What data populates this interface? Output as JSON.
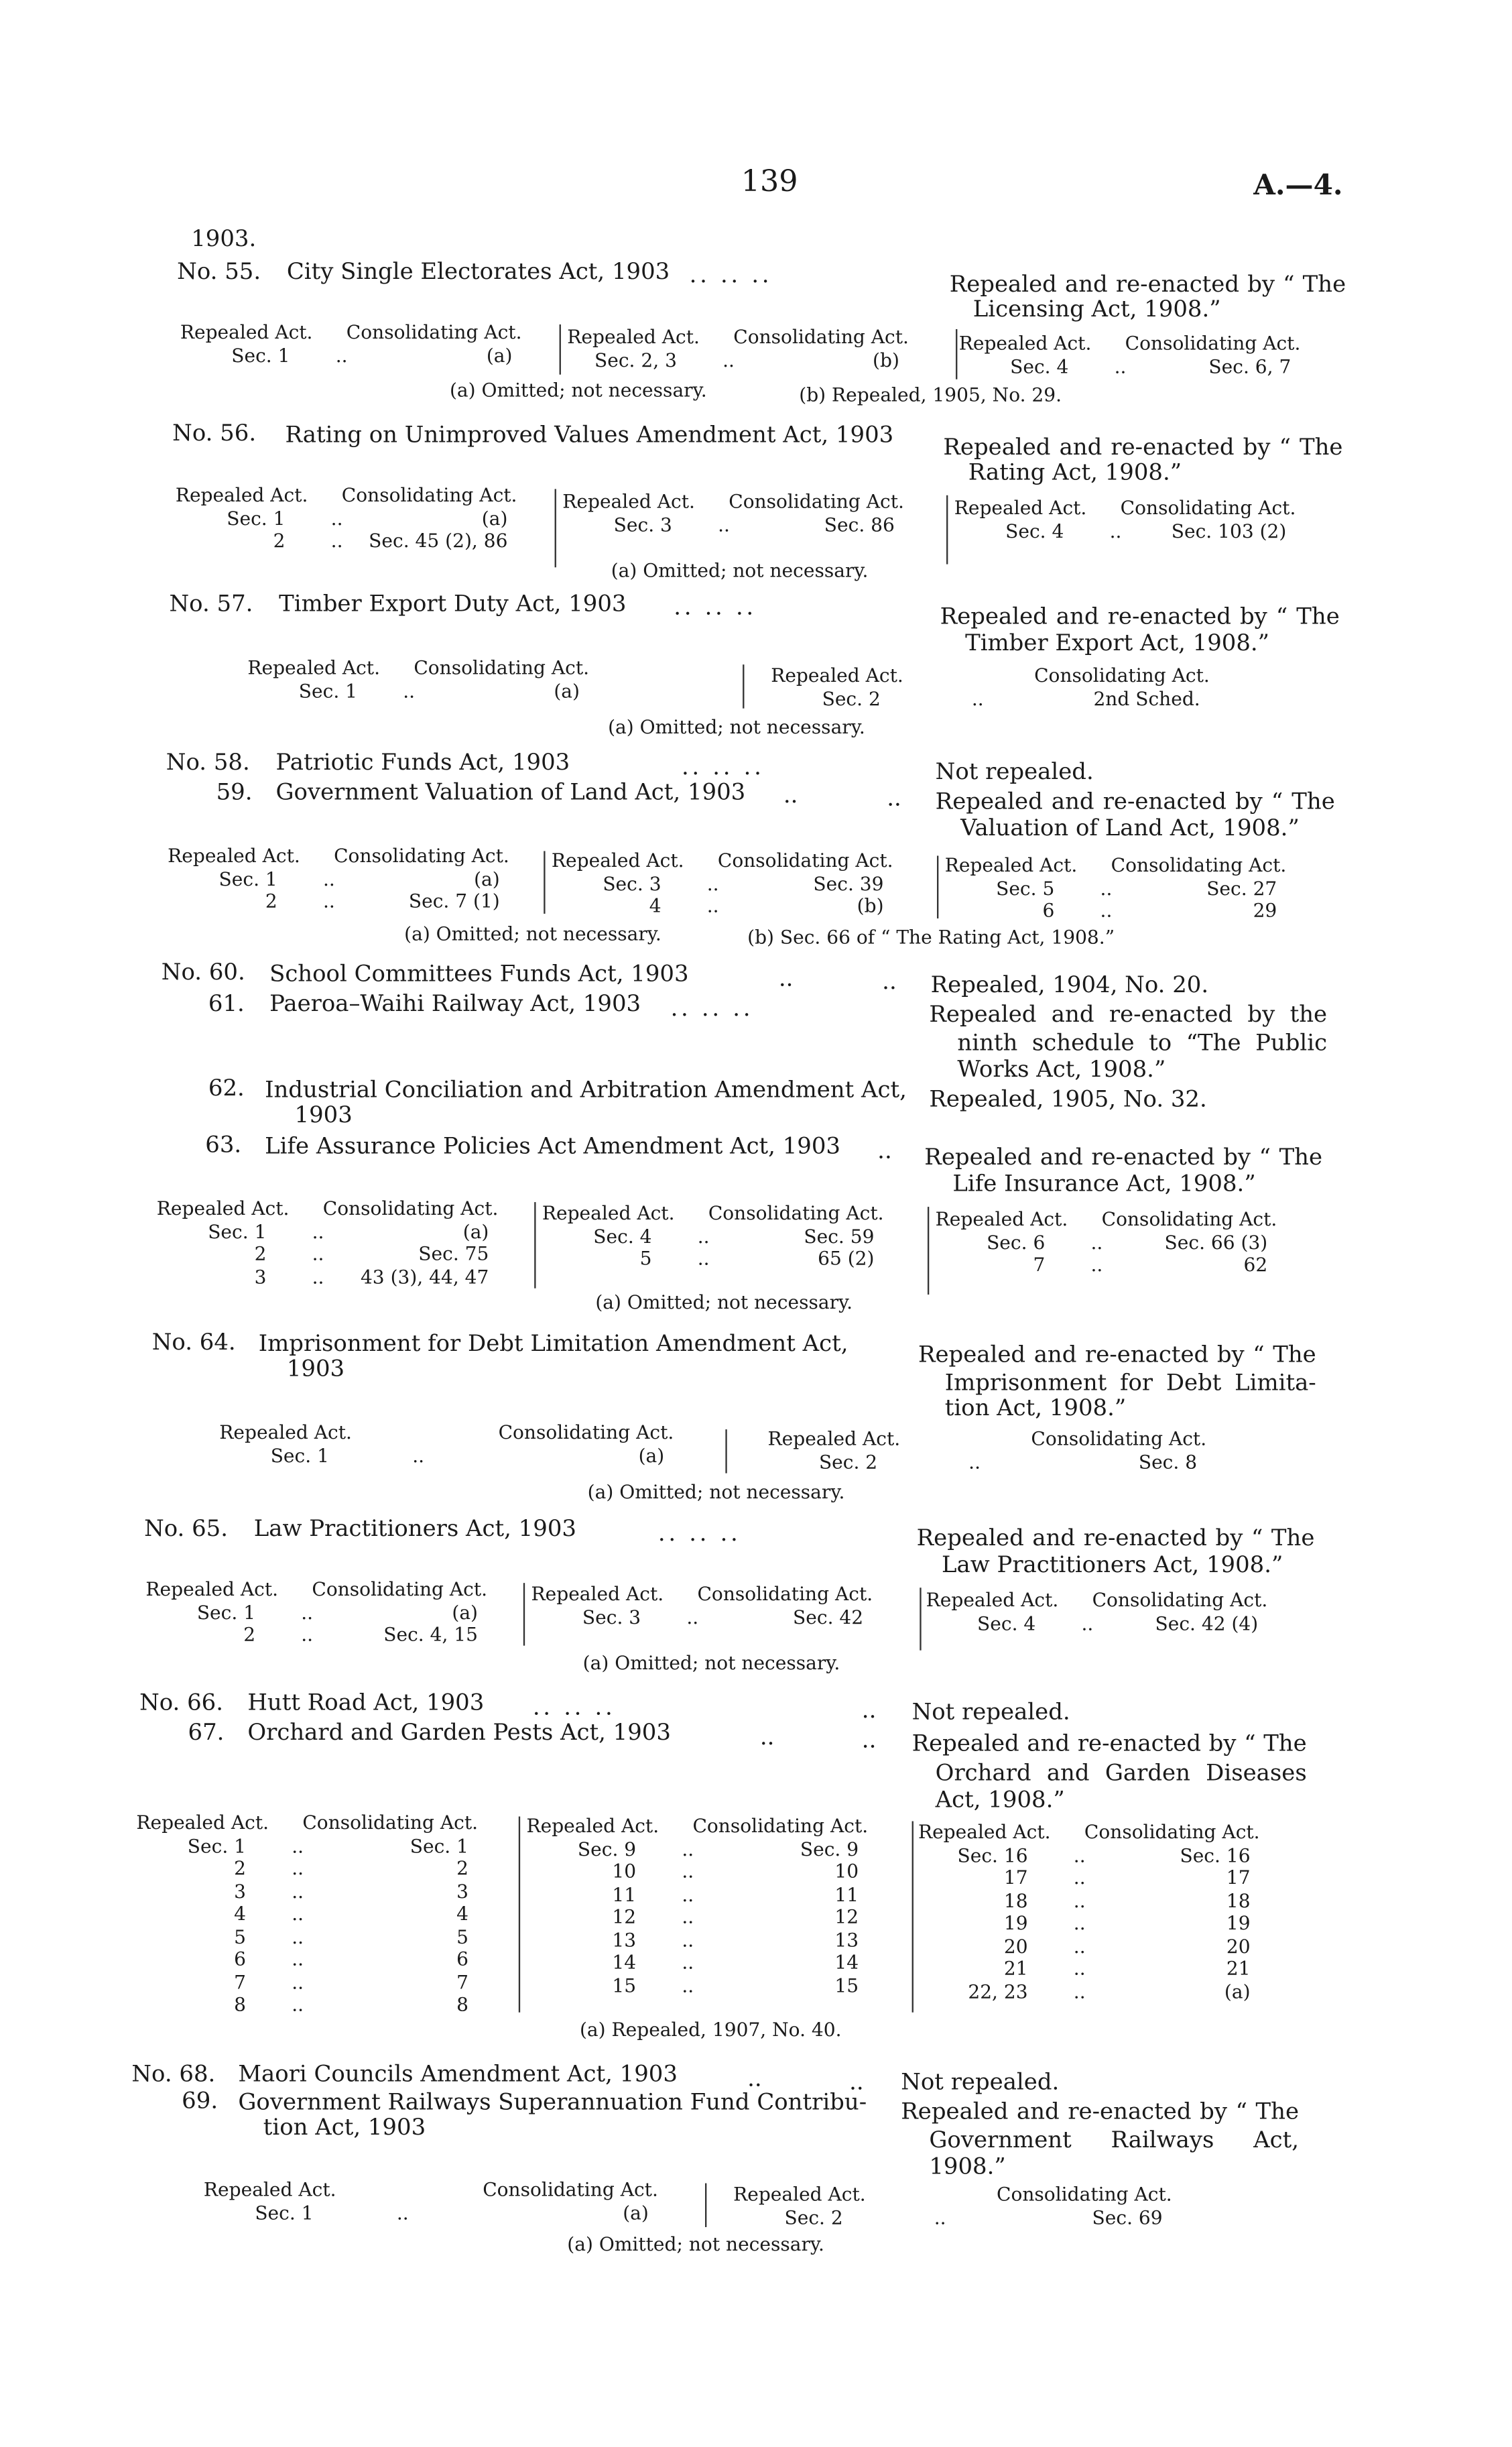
{
  "header": {
    "page_number": "139",
    "reference": "A.—4."
  },
  "year": "1903.",
  "leader": "..",
  "dots_leader": "..        ..        ..",
  "table_headers": {
    "repealed": "Repealed Act.",
    "consolidating": "Consolidating Act."
  },
  "entries": [
    {
      "number": "No. 55.",
      "title": "City Single Electorates Act, 1903",
      "status": [
        "Repealed and re-enacted by “ The",
        "Licensing Act, 1908.”"
      ]
    },
    {
      "number": "No. 56.",
      "title": "Rating on Unimproved Values Amendment Act, 1903",
      "status": [
        "Repealed and re-enacted by “ The",
        "Rating Act, 1908.”"
      ]
    },
    {
      "number": "No. 57.",
      "title": "Timber Export Duty Act, 1903",
      "status": [
        "Repealed and re-enacted by “ The",
        "Timber Export Act, 1908.”"
      ]
    },
    {
      "number": "No. 58.",
      "title": "Patriotic Funds Act, 1903",
      "status": [
        "Not repealed."
      ]
    },
    {
      "number": "59.",
      "title": "Government Valuation of Land Act, 1903",
      "status": [
        "Repealed and re-enacted by “ The",
        "Valuation of Land Act, 1908.”"
      ]
    },
    {
      "number": "No. 60.",
      "title": "School Committees Funds Act, 1903",
      "status": [
        "Repealed, 1904, No. 20."
      ]
    },
    {
      "number": "61.",
      "title": "Paeroa–Waihi Railway Act, 1903",
      "status": [
        "Repealed and re-enacted by the",
        "ninth schedule to “The Public",
        "Works Act, 1908.”"
      ]
    },
    {
      "number": "62.",
      "title": [
        "Industrial Conciliation and Arbitration Amendment Act,",
        "1903"
      ],
      "status": [
        "Repealed, 1905, No. 32."
      ]
    },
    {
      "number": "63.",
      "title": "Life Assurance Policies Act Amendment Act, 1903",
      "status": [
        "Repealed and re-enacted by “ The",
        "Life Insurance Act, 1908.”"
      ]
    },
    {
      "number": "No. 64.",
      "title": [
        "Imprisonment for Debt Limitation Amendment Act,",
        "1903"
      ],
      "status": [
        "Repealed and re-enacted by “ The",
        "Imprisonment for Debt Limita-",
        "tion Act, 1908.”"
      ]
    },
    {
      "number": "No. 65.",
      "title": "Law Practitioners Act, 1903",
      "status": [
        "Repealed and re-enacted by “ The",
        "Law Practitioners Act, 1908.”"
      ]
    },
    {
      "number": "No. 66.",
      "title": "Hutt Road Act, 1903",
      "status": [
        "Not repealed."
      ]
    },
    {
      "number": "67.",
      "title": "Orchard and Garden Pests Act, 1903",
      "status": [
        "Repealed and re-enacted by “ The",
        "Orchard and Garden Diseases",
        "Act, 1908.”"
      ]
    },
    {
      "number": "No. 68.",
      "title": "Maori Councils Amendment Act, 1903",
      "status": [
        "Not repealed."
      ]
    },
    {
      "number": "69.",
      "title": [
        "Government Railways Superannuation Fund Contribu-",
        "tion Act, 1903"
      ],
      "status": [
        "Repealed and re-enacted by “ The",
        "Government Railways Act,",
        "1908.”"
      ]
    }
  ],
  "tables": [
    {
      "groups": [
        [
          [
            "Sec. 1",
            "(a)"
          ]
        ],
        [
          [
            "Sec. 2, 3",
            "(b)"
          ]
        ],
        [
          [
            "Sec. 4",
            "Sec. 6, 7"
          ]
        ]
      ],
      "footnotes": [
        "(a) Omitted; not necessary.",
        "(b) Repealed, 1905, No. 29."
      ]
    },
    {
      "groups": [
        [
          [
            "Sec. 1",
            "(a)"
          ],
          [
            "2",
            "Sec. 45 (2), 86"
          ]
        ],
        [
          [
            "Sec. 3",
            "Sec. 86"
          ]
        ],
        [
          [
            "Sec. 4",
            "Sec. 103 (2)"
          ]
        ]
      ],
      "footnotes": [
        "(a) Omitted; not necessary."
      ]
    },
    {
      "groups": [
        [
          [
            "Sec. 1",
            "(a)"
          ]
        ],
        [
          [
            "Sec. 2",
            "2nd Sched."
          ]
        ]
      ],
      "footnotes": [
        "(a) Omitted; not necessary."
      ]
    },
    {
      "groups": [
        [
          [
            "Sec. 1",
            "(a)"
          ],
          [
            "2",
            "Sec. 7 (1)"
          ]
        ],
        [
          [
            "Sec. 3",
            "Sec. 39"
          ],
          [
            "4",
            "(b)"
          ]
        ],
        [
          [
            "Sec. 5",
            "Sec. 27"
          ],
          [
            "6",
            "29"
          ]
        ]
      ],
      "footnotes": [
        "(a) Omitted; not necessary.",
        "(b) Sec. 66 of “ The Rating Act, 1908.”"
      ]
    },
    {
      "groups": [
        [
          [
            "Sec. 1",
            "(a)"
          ],
          [
            "2",
            "Sec. 75"
          ],
          [
            "3",
            "43 (3), 44, 47"
          ]
        ],
        [
          [
            "Sec. 4",
            "Sec. 59"
          ],
          [
            "5",
            "65 (2)"
          ]
        ],
        [
          [
            "Sec. 6",
            "Sec. 66 (3)"
          ],
          [
            "7",
            "62"
          ]
        ]
      ],
      "footnotes": [
        "(a) Omitted; not necessary."
      ]
    },
    {
      "groups": [
        [
          [
            "Sec. 1",
            "(a)"
          ]
        ],
        [
          [
            "Sec. 2",
            "Sec. 8"
          ]
        ]
      ],
      "footnotes": [
        "(a) Omitted; not necessary."
      ]
    },
    {
      "groups": [
        [
          [
            "Sec. 1",
            "(a)"
          ],
          [
            "2",
            "Sec. 4, 15"
          ]
        ],
        [
          [
            "Sec. 3",
            "Sec. 42"
          ]
        ],
        [
          [
            "Sec. 4",
            "Sec. 42 (4)"
          ]
        ]
      ],
      "footnotes": [
        "(a) Omitted; not necessary."
      ]
    },
    {
      "groups": [
        [
          [
            "Sec. 1",
            "Sec. 1"
          ],
          [
            "2",
            "2"
          ],
          [
            "3",
            "3"
          ],
          [
            "4",
            "4"
          ],
          [
            "5",
            "5"
          ],
          [
            "6",
            "6"
          ],
          [
            "7",
            "7"
          ],
          [
            "8",
            "8"
          ]
        ],
        [
          [
            "Sec. 9",
            "Sec. 9"
          ],
          [
            "10",
            "10"
          ],
          [
            "11",
            "11"
          ],
          [
            "12",
            "12"
          ],
          [
            "13",
            "13"
          ],
          [
            "14",
            "14"
          ],
          [
            "15",
            "15"
          ]
        ],
        [
          [
            "Sec. 16",
            "Sec. 16"
          ],
          [
            "17",
            "17"
          ],
          [
            "18",
            "18"
          ],
          [
            "19",
            "19"
          ],
          [
            "20",
            "20"
          ],
          [
            "21",
            "21"
          ],
          [
            "22, 23",
            "(a)"
          ]
        ]
      ],
      "footnotes": [
        "(a) Repealed, 1907, No. 40."
      ]
    },
    {
      "groups": [
        [
          [
            "Sec. 1",
            "(a)"
          ]
        ],
        [
          [
            "Sec. 2",
            "Sec. 69"
          ]
        ]
      ],
      "footnotes": [
        "(a) Omitted; not necessary."
      ]
    }
  ]
}
